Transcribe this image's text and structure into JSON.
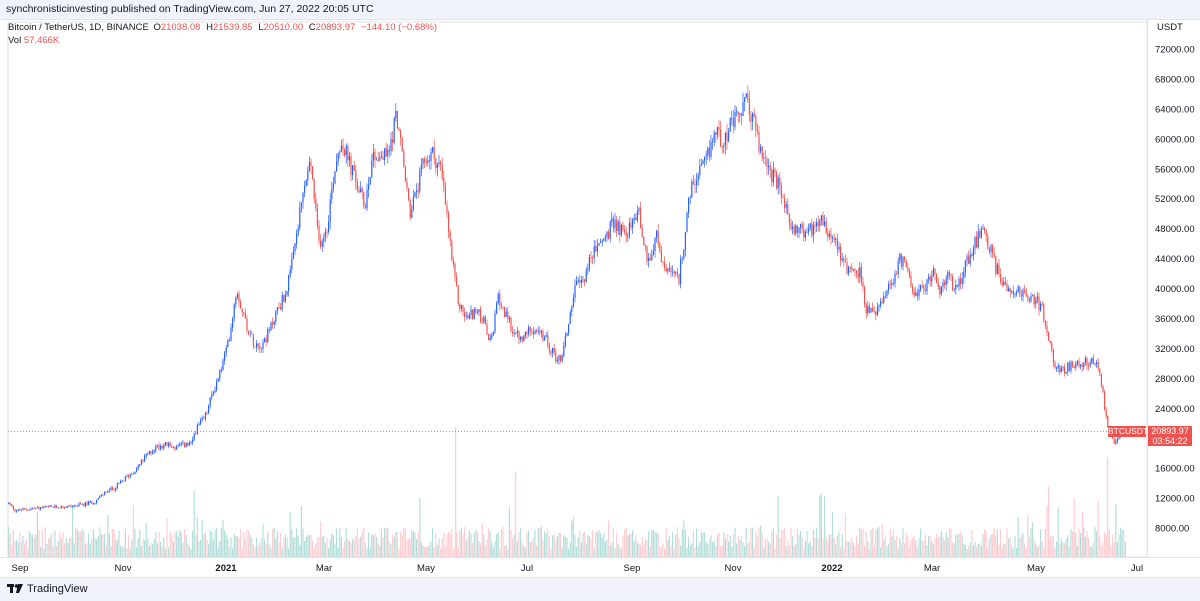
{
  "header": {
    "publisher_line": "synchronisticinvesting published on TradingView.com, Jun 27, 2022 20:05 UTC"
  },
  "legend": {
    "symbol": "Bitcoin / TetherUS, 1D, BINANCE",
    "open_label": "O",
    "open": "21038.08",
    "high_label": "H",
    "high": "21539.85",
    "low_label": "L",
    "low": "20510.00",
    "close_label": "C",
    "close": "20893.97",
    "change": "−144.10 (−0.68%)",
    "vol_label": "Vol",
    "vol": "57.466K"
  },
  "price_marker": {
    "symbol": "BTCUSDT",
    "price": "20893.97",
    "countdown": "03:54:22"
  },
  "footer": {
    "brand": "TradingView"
  },
  "colors": {
    "up": "#2962ff",
    "down": "#ef5350",
    "vol_up": "#b2dfdb",
    "vol_down": "#ffcdd2"
  },
  "chart_data": {
    "type": "candlestick",
    "currency": "USDT",
    "y_ticks": [
      "72000.00",
      "68000.00",
      "64000.00",
      "60000.00",
      "56000.00",
      "52000.00",
      "48000.00",
      "44000.00",
      "40000.00",
      "36000.00",
      "32000.00",
      "28000.00",
      "24000.00",
      "16000.00",
      "12000.00",
      "8000.00"
    ],
    "ylim": [
      8000,
      72000
    ],
    "x_ticks": [
      "Sep",
      "Nov",
      "2021",
      "Mar",
      "May",
      "Jul",
      "Sep",
      "Nov",
      "2022",
      "Mar",
      "May",
      "Jul"
    ],
    "last_price": 20893.97,
    "close_path": [
      [
        0,
        11500
      ],
      [
        8,
        11300
      ],
      [
        15,
        10300
      ],
      [
        25,
        10500
      ],
      [
        40,
        10700
      ],
      [
        55,
        10800
      ],
      [
        70,
        10900
      ],
      [
        85,
        11200
      ],
      [
        95,
        11600
      ],
      [
        105,
        12800
      ],
      [
        115,
        13400
      ],
      [
        125,
        14700
      ],
      [
        135,
        15800
      ],
      [
        145,
        17500
      ],
      [
        155,
        18800
      ],
      [
        165,
        19200
      ],
      [
        175,
        18700
      ],
      [
        185,
        19200
      ],
      [
        190,
        19000
      ],
      [
        195,
        21000
      ],
      [
        205,
        23000
      ],
      [
        212,
        26000
      ],
      [
        220,
        29000
      ],
      [
        228,
        33000
      ],
      [
        236,
        40000
      ],
      [
        244,
        36000
      ],
      [
        252,
        33000
      ],
      [
        260,
        32500
      ],
      [
        268,
        34000
      ],
      [
        276,
        37000
      ],
      [
        284,
        39000
      ],
      [
        290,
        42000
      ],
      [
        297,
        48000
      ],
      [
        303,
        53000
      ],
      [
        310,
        57000
      ],
      [
        318,
        46000
      ],
      [
        326,
        48000
      ],
      [
        334,
        56000
      ],
      [
        340,
        60000
      ],
      [
        348,
        57000
      ],
      [
        356,
        54000
      ],
      [
        364,
        51000
      ],
      [
        372,
        58000
      ],
      [
        380,
        57500
      ],
      [
        388,
        58000
      ],
      [
        396,
        63500
      ],
      [
        404,
        55000
      ],
      [
        410,
        50000
      ],
      [
        416,
        53000
      ],
      [
        424,
        57000
      ],
      [
        432,
        58000
      ],
      [
        440,
        56000
      ],
      [
        446,
        50000
      ],
      [
        452,
        43000
      ],
      [
        458,
        38000
      ],
      [
        466,
        36000
      ],
      [
        474,
        37000
      ],
      [
        482,
        36000
      ],
      [
        490,
        32500
      ],
      [
        498,
        39000
      ],
      [
        506,
        36000
      ],
      [
        514,
        34000
      ],
      [
        522,
        33000
      ],
      [
        530,
        35000
      ],
      [
        538,
        34000
      ],
      [
        546,
        33000
      ],
      [
        554,
        31000
      ],
      [
        560,
        30500
      ],
      [
        566,
        34000
      ],
      [
        574,
        40000
      ],
      [
        582,
        41000
      ],
      [
        590,
        44000
      ],
      [
        598,
        46000
      ],
      [
        606,
        47000
      ],
      [
        614,
        49000
      ],
      [
        622,
        47500
      ],
      [
        630,
        48000
      ],
      [
        638,
        51000
      ],
      [
        644,
        45000
      ],
      [
        650,
        44000
      ],
      [
        656,
        47000
      ],
      [
        662,
        43000
      ],
      [
        670,
        42000
      ],
      [
        678,
        41000
      ],
      [
        684,
        47000
      ],
      [
        690,
        53000
      ],
      [
        698,
        55000
      ],
      [
        706,
        57000
      ],
      [
        714,
        61000
      ],
      [
        722,
        60000
      ],
      [
        730,
        61500
      ],
      [
        738,
        63000
      ],
      [
        746,
        65000
      ],
      [
        754,
        62000
      ],
      [
        760,
        58000
      ],
      [
        766,
        57000
      ],
      [
        772,
        55000
      ],
      [
        780,
        53000
      ],
      [
        788,
        49000
      ],
      [
        796,
        48000
      ],
      [
        804,
        47500
      ],
      [
        812,
        48000
      ],
      [
        820,
        50000
      ],
      [
        828,
        47500
      ],
      [
        836,
        46500
      ],
      [
        844,
        43000
      ],
      [
        852,
        42500
      ],
      [
        860,
        42000
      ],
      [
        866,
        37000
      ],
      [
        872,
        36500
      ],
      [
        878,
        37500
      ],
      [
        884,
        38500
      ],
      [
        892,
        41000
      ],
      [
        900,
        44000
      ],
      [
        908,
        42000
      ],
      [
        916,
        39000
      ],
      [
        924,
        40000
      ],
      [
        932,
        42500
      ],
      [
        940,
        39500
      ],
      [
        948,
        41500
      ],
      [
        956,
        40000
      ],
      [
        964,
        43000
      ],
      [
        972,
        45500
      ],
      [
        980,
        47500
      ],
      [
        988,
        46000
      ],
      [
        996,
        42500
      ],
      [
        1004,
        40500
      ],
      [
        1012,
        40000
      ],
      [
        1020,
        39500
      ],
      [
        1028,
        39000
      ],
      [
        1036,
        38500
      ],
      [
        1042,
        37000
      ],
      [
        1048,
        33000
      ],
      [
        1054,
        30000
      ],
      [
        1060,
        29000
      ],
      [
        1068,
        29500
      ],
      [
        1076,
        29800
      ],
      [
        1084,
        30000
      ],
      [
        1092,
        30500
      ],
      [
        1098,
        29000
      ],
      [
        1102,
        26500
      ],
      [
        1106,
        22000
      ],
      [
        1110,
        20500
      ],
      [
        1114,
        19000
      ],
      [
        1118,
        20500
      ],
      [
        1122,
        21000
      ],
      [
        1126,
        20894
      ]
    ]
  }
}
